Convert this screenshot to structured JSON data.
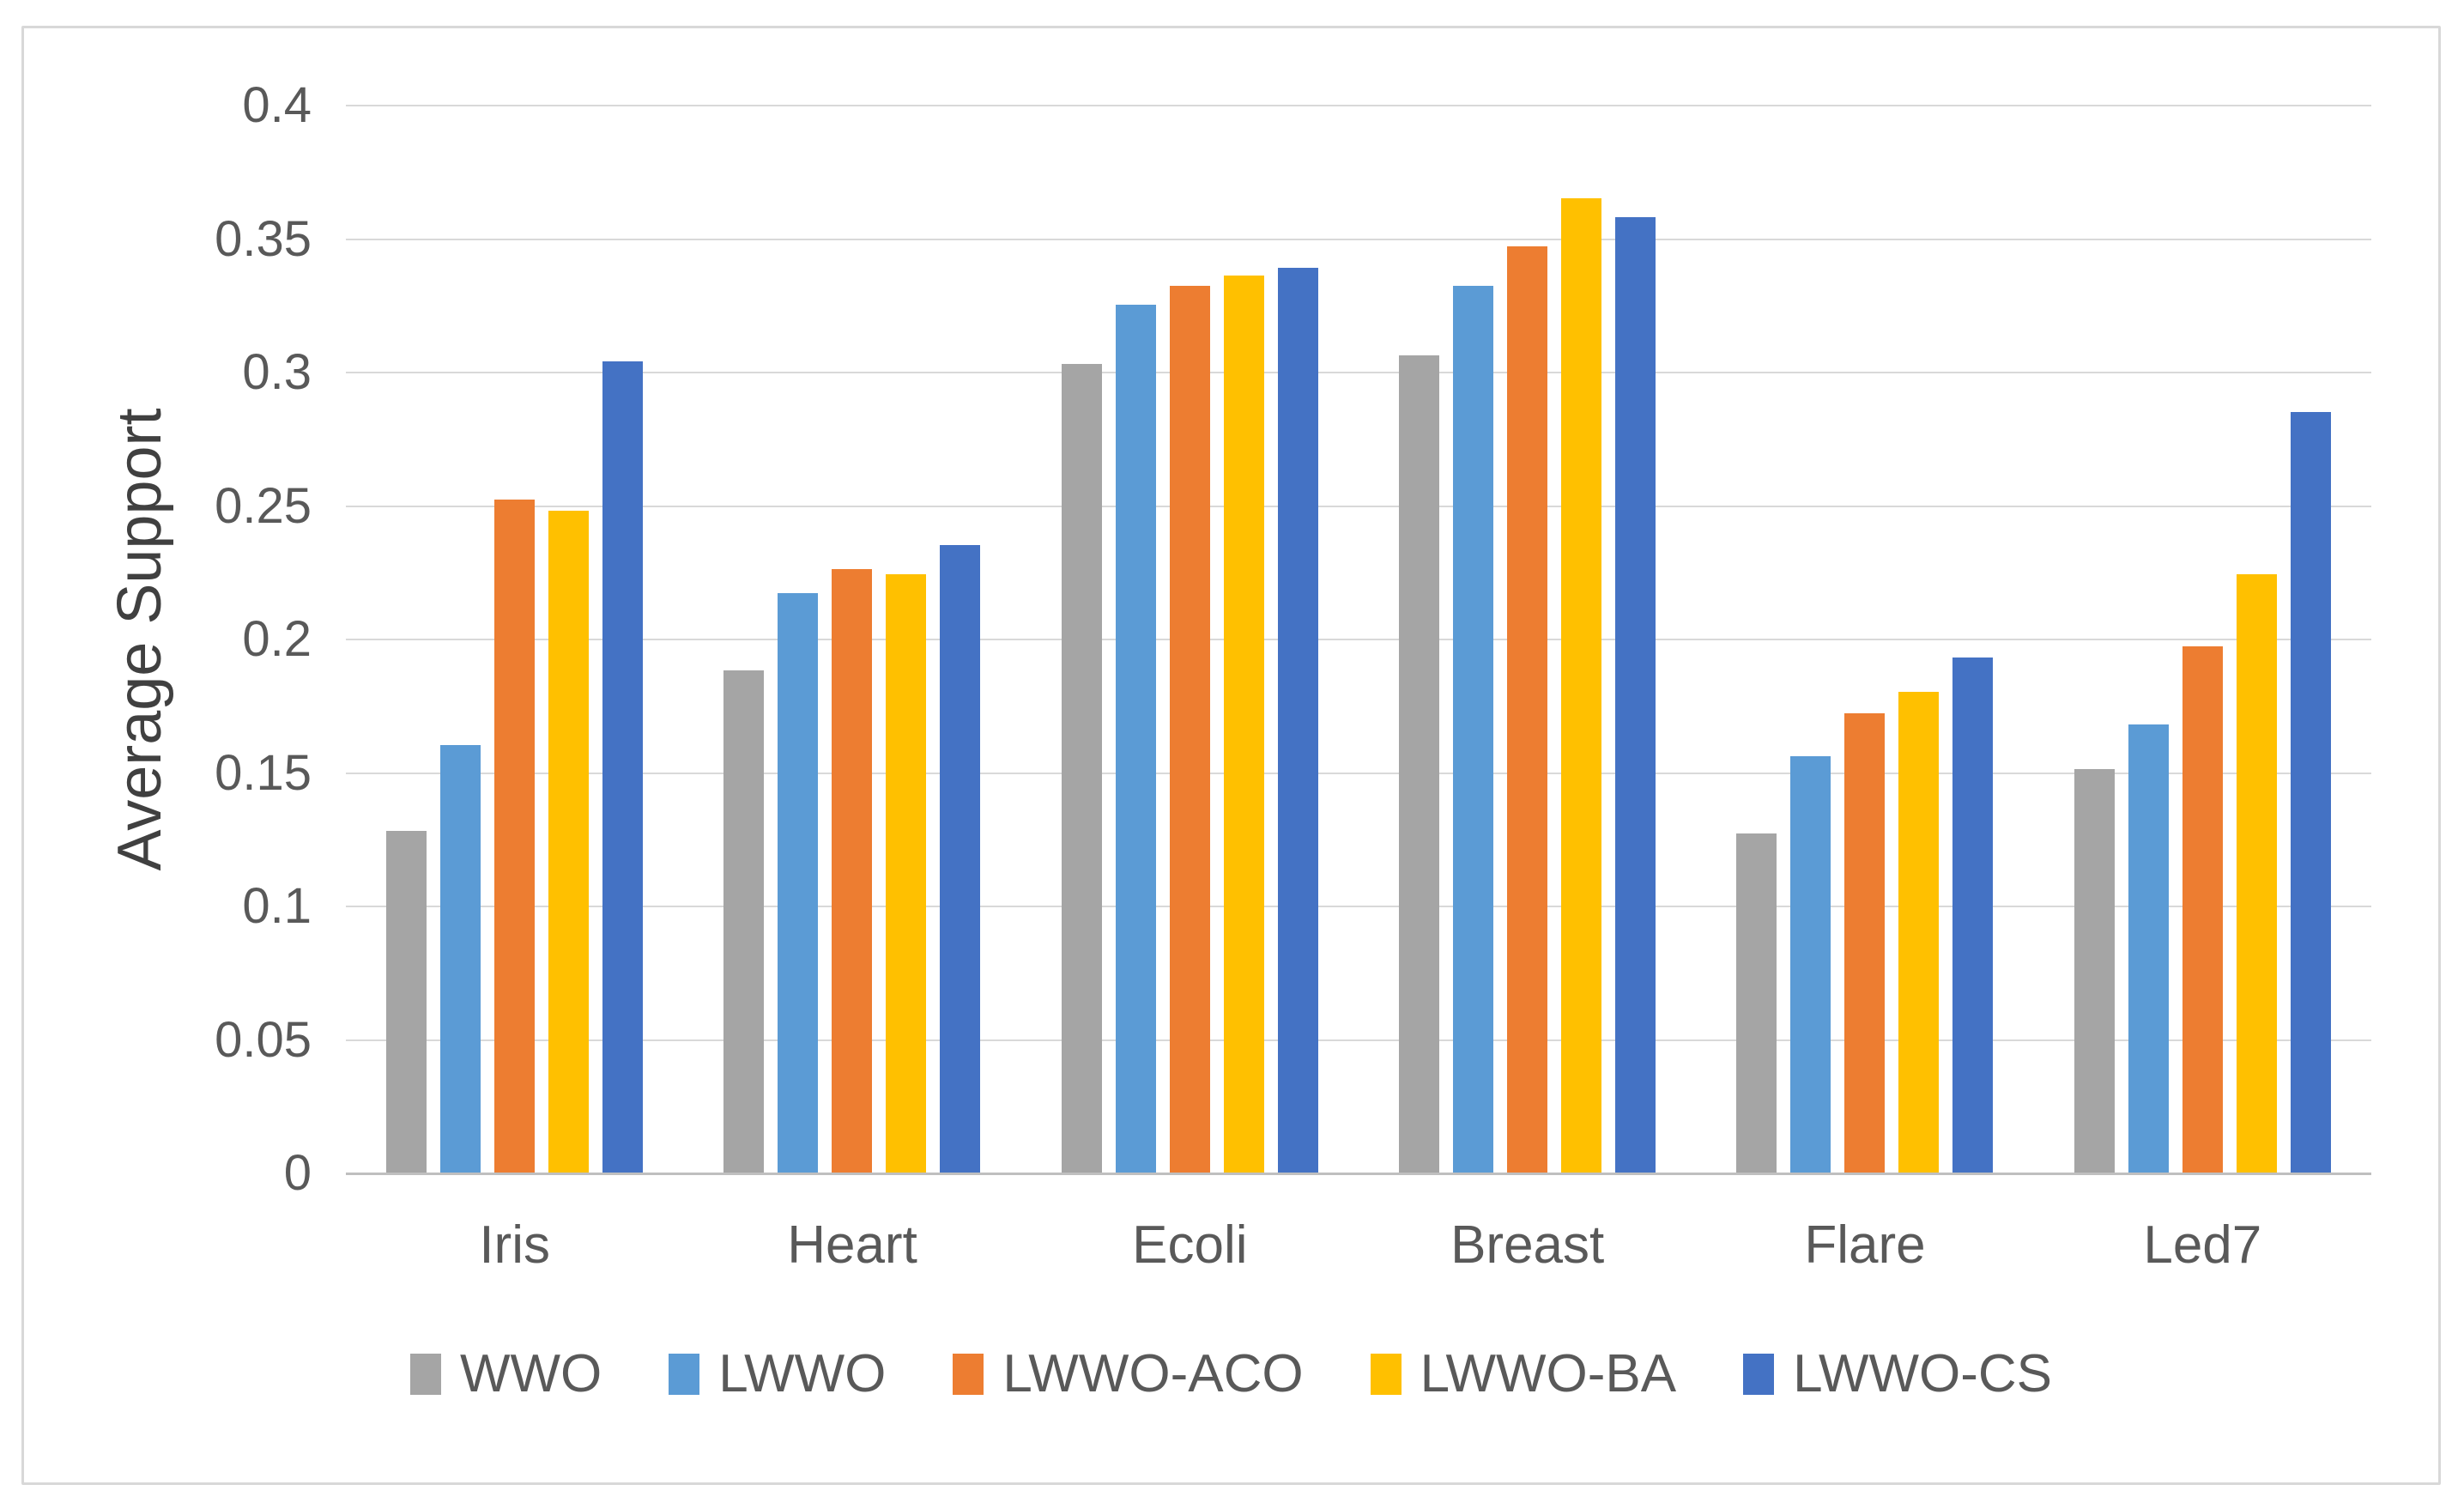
{
  "chart_data": {
    "type": "bar",
    "title": "",
    "categories": [
      "Iris",
      "Heart",
      "Ecoli",
      "Breast",
      "Flare",
      "Led7"
    ],
    "series": [
      {
        "name": "WWO",
        "color": "#A5A5A5",
        "values": [
          0.128,
          0.188,
          0.303,
          0.306,
          0.127,
          0.151
        ]
      },
      {
        "name": "LWWO",
        "color": "#5B9BD5",
        "values": [
          0.16,
          0.217,
          0.325,
          0.332,
          0.156,
          0.168
        ]
      },
      {
        "name": "LWWO-ACO",
        "color": "#ED7D31",
        "values": [
          0.252,
          0.226,
          0.332,
          0.347,
          0.172,
          0.197
        ]
      },
      {
        "name": "LWWO-BA",
        "color": "#FFC000",
        "values": [
          0.248,
          0.224,
          0.336,
          0.365,
          0.18,
          0.224
        ]
      },
      {
        "name": "LWWO-CS",
        "color": "#4472C4",
        "values": [
          0.304,
          0.235,
          0.339,
          0.358,
          0.193,
          0.285
        ]
      }
    ],
    "xlabel": "",
    "ylabel": "Average Support",
    "ylim": [
      0,
      0.4
    ],
    "ytick_step": 0.05,
    "yticks": [
      "0",
      "0.05",
      "0.1",
      "0.15",
      "0.2",
      "0.25",
      "0.3",
      "0.35",
      "0.4"
    ],
    "grid": true,
    "legend_position": "bottom",
    "style": {
      "grid_color": "#d9d9d9",
      "axis_color": "#bfbfbf",
      "tick_text_color": "#595959",
      "axis_title_color": "#404040",
      "frame_border_color": "#d8d8d8",
      "background": "#ffffff"
    }
  }
}
